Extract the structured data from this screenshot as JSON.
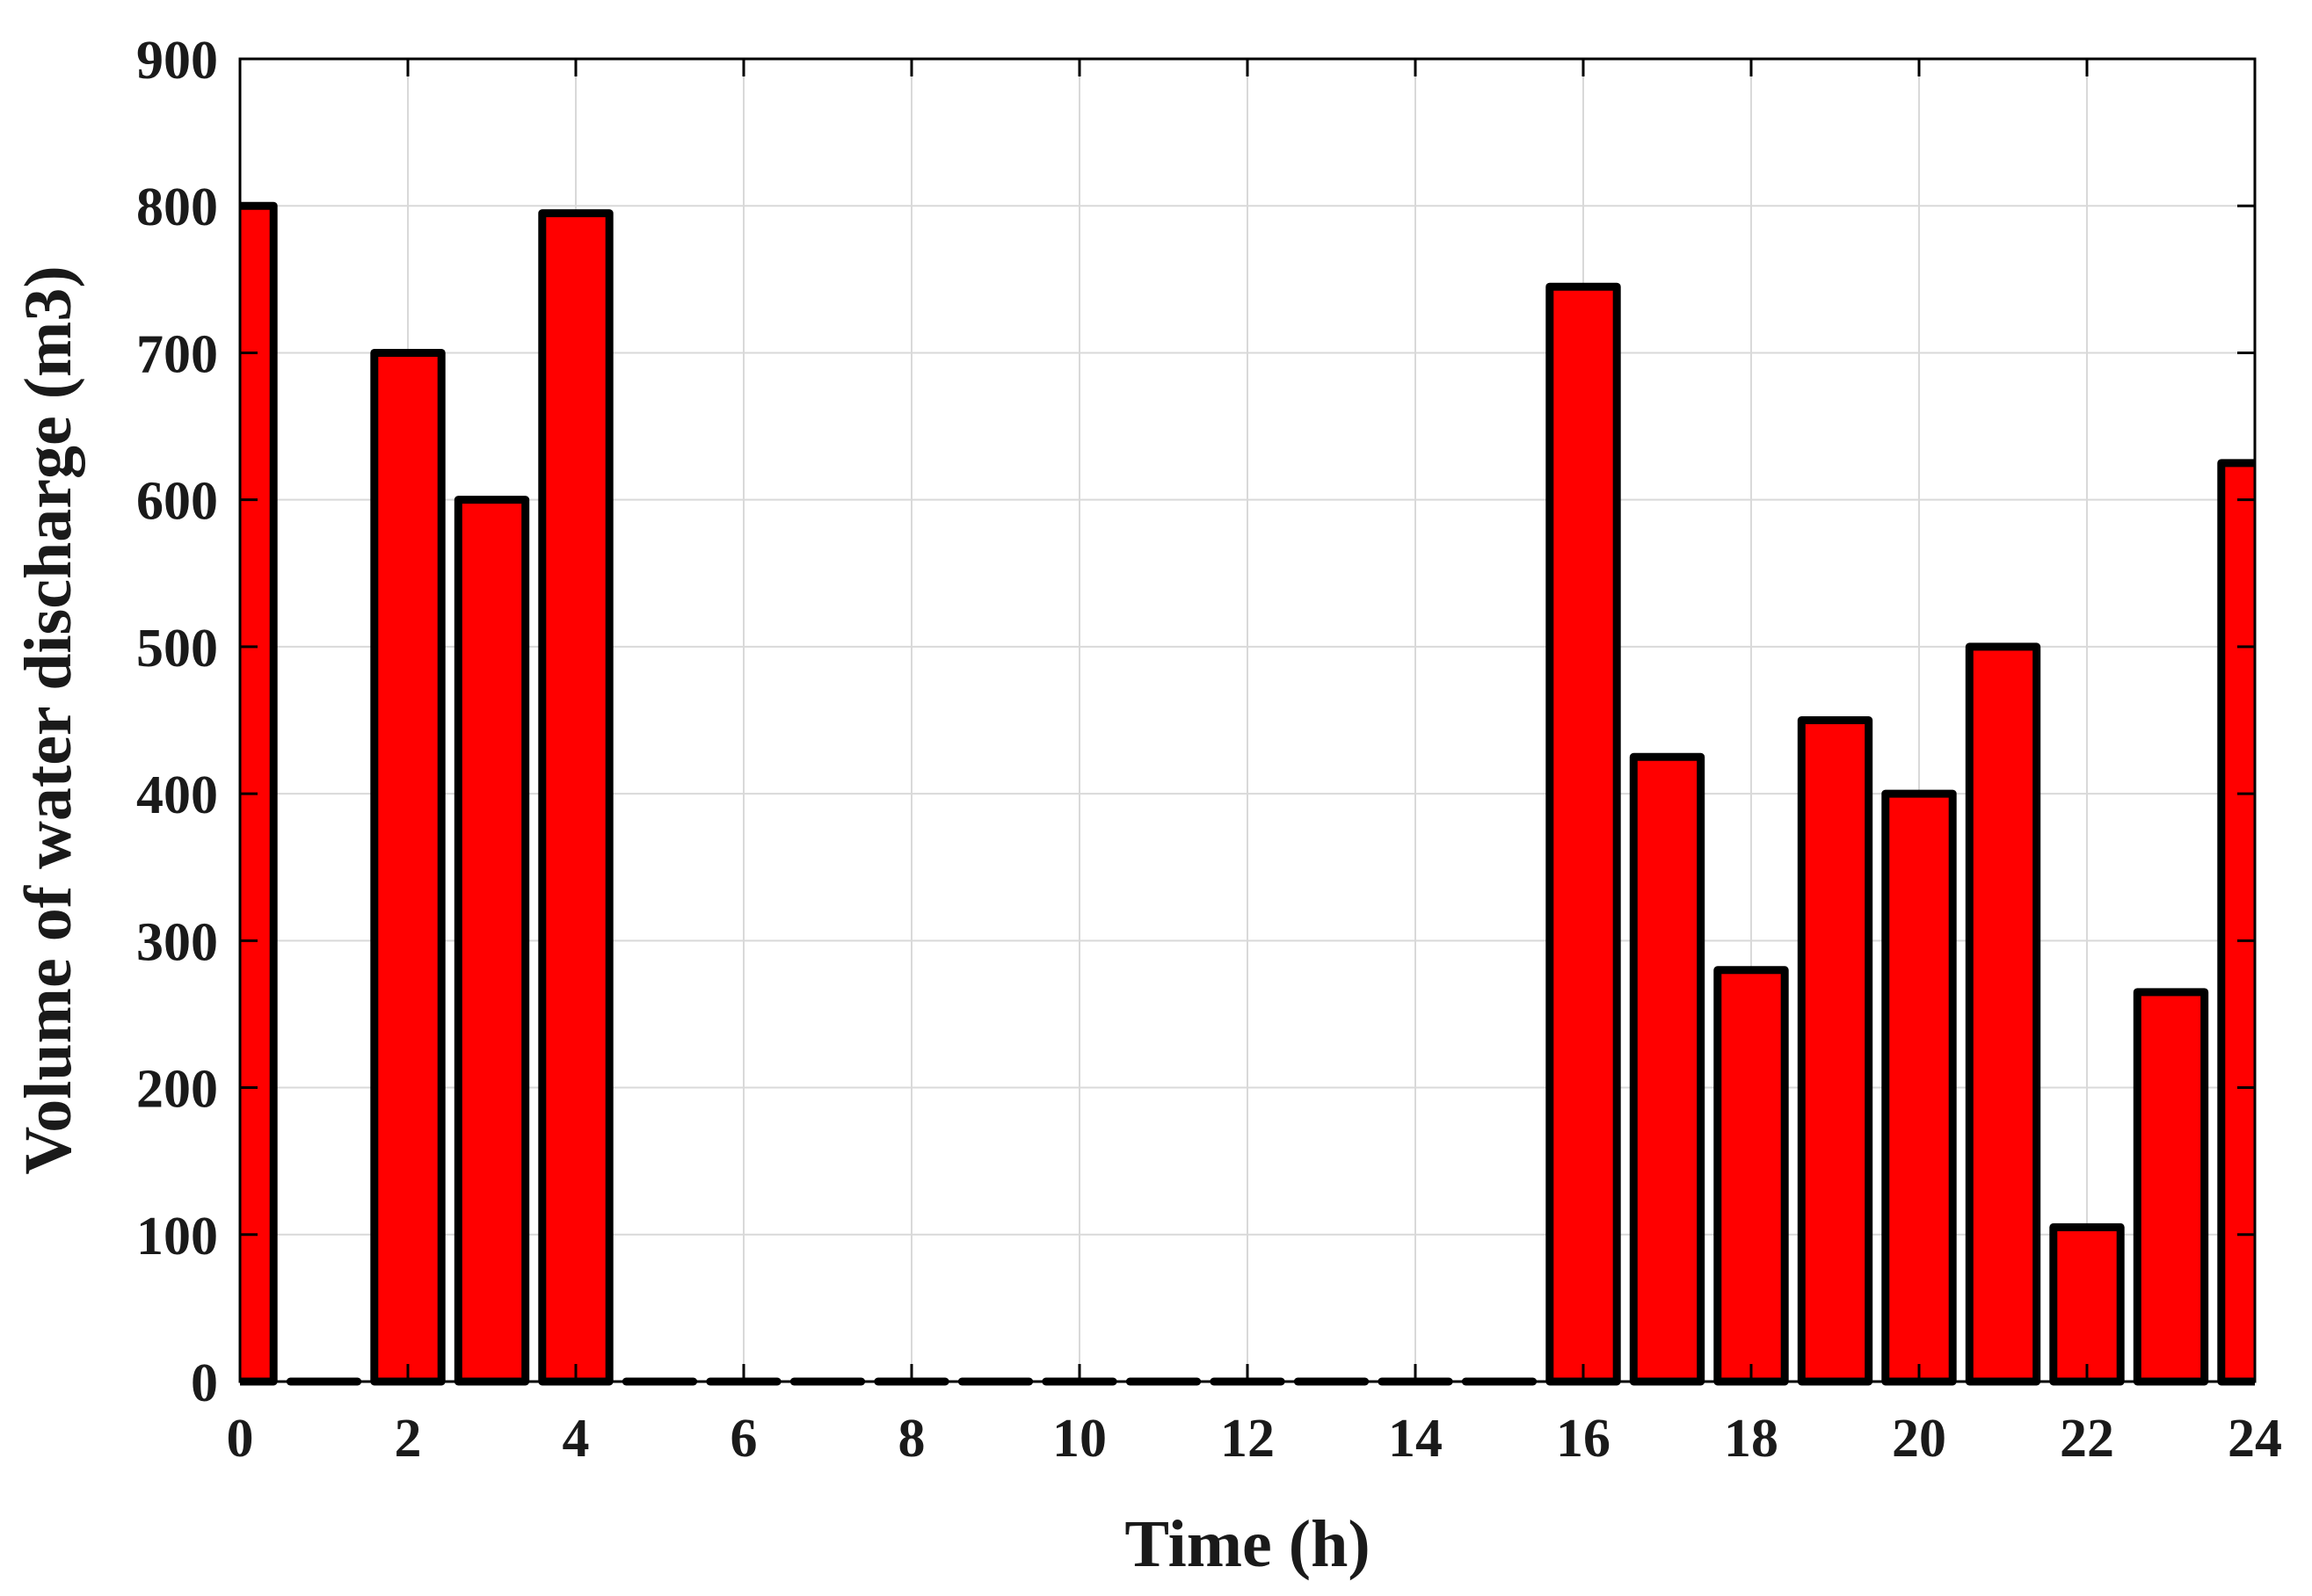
{
  "chart_data": {
    "type": "bar",
    "x": [
      0,
      1,
      2,
      3,
      4,
      5,
      6,
      7,
      8,
      9,
      10,
      11,
      12,
      13,
      14,
      15,
      16,
      17,
      18,
      19,
      20,
      21,
      22,
      23,
      24
    ],
    "values": [
      800,
      0,
      700,
      600,
      795,
      0,
      0,
      0,
      0,
      0,
      0,
      0,
      0,
      0,
      0,
      0,
      745,
      425,
      280,
      450,
      400,
      500,
      105,
      265,
      625
    ],
    "xlabel": "Time (h)",
    "ylabel": "Volume of water discharge (m3)",
    "xlim": [
      0,
      24
    ],
    "ylim": [
      0,
      900
    ],
    "xticks": [
      0,
      2,
      4,
      6,
      8,
      10,
      12,
      14,
      16,
      18,
      20,
      22,
      24
    ],
    "yticks": [
      0,
      100,
      200,
      300,
      400,
      500,
      600,
      700,
      800,
      900
    ],
    "grid": true,
    "bar_color": "#ff0000",
    "edge_color": "#000000"
  }
}
